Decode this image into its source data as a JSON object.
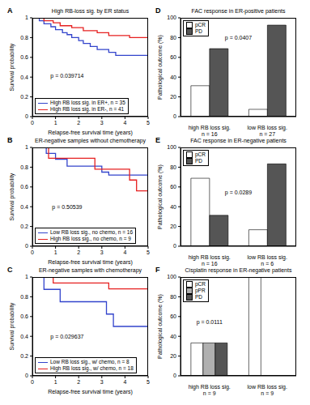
{
  "chart_data": [
    {
      "panel_label": "A",
      "type": "line",
      "line_style": "step",
      "title": "High RB-loss sig. by ER status",
      "x_label": "Relapse-free survival time (years)",
      "y_label": "Survival probability",
      "annotation": "p = 0.039714",
      "xlim": [
        0,
        5
      ],
      "xticks": [
        0,
        1,
        2,
        3,
        4,
        5
      ],
      "ylim": [
        0,
        1
      ],
      "yticks": [
        0,
        0.2,
        0.4,
        0.6,
        0.8,
        1
      ],
      "legend": "lower left",
      "series": [
        {
          "name": "High RB loss sig. in ER+, n = 35",
          "color": "#3344cc",
          "x": [
            0,
            0.3,
            0.5,
            0.8,
            1.0,
            1.3,
            1.5,
            1.7,
            2.0,
            2.2,
            2.5,
            2.8,
            3.3,
            3.6,
            5
          ],
          "values": [
            1,
            0.97,
            0.94,
            0.91,
            0.88,
            0.85,
            0.83,
            0.8,
            0.77,
            0.74,
            0.71,
            0.68,
            0.65,
            0.62,
            0.62
          ]
        },
        {
          "name": "High RB loss sig. in ER-, n = 41",
          "color": "#e62020",
          "x": [
            0,
            0.5,
            0.9,
            1.2,
            1.7,
            2.2,
            2.8,
            3.3,
            4.2,
            5
          ],
          "values": [
            1,
            0.97,
            0.95,
            0.92,
            0.9,
            0.87,
            0.85,
            0.82,
            0.8,
            0.8
          ]
        }
      ]
    },
    {
      "panel_label": "B",
      "type": "line",
      "line_style": "step",
      "title": "ER-negative samples without chemotherapy",
      "x_label": "Relapse-free survival time (years)",
      "y_label": "Survival probability",
      "annotation": "p = 0.50539",
      "xlim": [
        0,
        5
      ],
      "xticks": [
        0,
        1,
        2,
        3,
        4,
        5
      ],
      "ylim": [
        0,
        1
      ],
      "yticks": [
        0,
        0.2,
        0.4,
        0.6,
        0.8,
        1
      ],
      "legend": "lower left",
      "series": [
        {
          "name": "Low RB loss sig., no chemo, n = 16",
          "color": "#3344cc",
          "x": [
            0,
            0.6,
            1.0,
            1.5,
            3.0,
            3.3,
            5
          ],
          "values": [
            1,
            0.94,
            0.88,
            0.81,
            0.75,
            0.72,
            0.72
          ]
        },
        {
          "name": "High RB loss sig., no chemo, n = 9",
          "color": "#e62020",
          "x": [
            0,
            0.7,
            2.7,
            4.2,
            4.5,
            5
          ],
          "values": [
            1,
            0.89,
            0.78,
            0.67,
            0.56,
            0.56
          ]
        }
      ]
    },
    {
      "panel_label": "C",
      "type": "line",
      "line_style": "step",
      "title": "ER-negative samples with chemotherapy",
      "x_label": "Relapse-free survival time (years)",
      "y_label": "Survival probability",
      "annotation": "p = 0.029637",
      "xlim": [
        0,
        5
      ],
      "xticks": [
        0,
        1,
        2,
        3,
        4,
        5
      ],
      "ylim": [
        0,
        1
      ],
      "yticks": [
        0,
        0.2,
        0.4,
        0.6,
        0.8,
        1
      ],
      "legend": "lower left",
      "series": [
        {
          "name": "Low RB loss sig., w/ chemo, n = 8",
          "color": "#3344cc",
          "x": [
            0,
            0.5,
            1.2,
            3.2,
            3.5,
            5
          ],
          "values": [
            1,
            0.875,
            0.75,
            0.625,
            0.5,
            0.5
          ]
        },
        {
          "name": "High RB loss sig., w/ chemo, n = 18",
          "color": "#e62020",
          "x": [
            0,
            0.9,
            3.3,
            5
          ],
          "values": [
            1,
            0.94,
            0.88,
            0.88
          ]
        }
      ]
    },
    {
      "panel_label": "D",
      "type": "bar",
      "title": "FAC response in ER-positive patients",
      "y_label": "Pathological outcome (%)",
      "annotation": "p = 0.0407",
      "categories": [
        "high RB loss sig.",
        "low RB loss sig."
      ],
      "category_sublabels": [
        "n = 16",
        "n = 27"
      ],
      "ylim": [
        0,
        100
      ],
      "yticks": [
        0,
        20,
        40,
        60,
        80,
        100
      ],
      "legend": "upper left",
      "series": [
        {
          "name": "pCR",
          "color": "#ffffff",
          "values": [
            31.3,
            7.4
          ]
        },
        {
          "name": "PD",
          "color": "#555555",
          "values": [
            68.8,
            92.6
          ]
        }
      ]
    },
    {
      "panel_label": "E",
      "type": "bar",
      "title": "FAC response in ER-negative patients",
      "y_label": "Pathological outcome (%)",
      "annotation": "p = 0.0289",
      "categories": [
        "high RB loss sig.",
        "low RB loss sig."
      ],
      "category_sublabels": [
        "n = 16",
        "n = 6"
      ],
      "ylim": [
        0,
        100
      ],
      "yticks": [
        0,
        20,
        40,
        60,
        80,
        100
      ],
      "legend": "upper left",
      "series": [
        {
          "name": "pCR",
          "color": "#ffffff",
          "values": [
            68.8,
            16.7
          ]
        },
        {
          "name": "PD",
          "color": "#555555",
          "values": [
            31.3,
            83.3
          ]
        }
      ]
    },
    {
      "panel_label": "F",
      "type": "bar",
      "title": "Cisplatin response in ER-negative patients",
      "y_label": "Pathological outcome (%)",
      "annotation": "p = 0.0111",
      "categories": [
        "high RB loss sig.",
        "low RB loss sig."
      ],
      "category_sublabels": [
        "n = 9",
        "n = 9"
      ],
      "ylim": [
        0,
        100
      ],
      "yticks": [
        0,
        20,
        40,
        60,
        80,
        100
      ],
      "legend": "upper left",
      "series": [
        {
          "name": "pCR",
          "color": "#ffffff",
          "values": [
            33.3,
            100
          ]
        },
        {
          "name": "pPR",
          "color": "#b0b0b0",
          "values": [
            33.3,
            0
          ]
        },
        {
          "name": "PD",
          "color": "#555555",
          "values": [
            33.3,
            0
          ]
        }
      ]
    }
  ]
}
